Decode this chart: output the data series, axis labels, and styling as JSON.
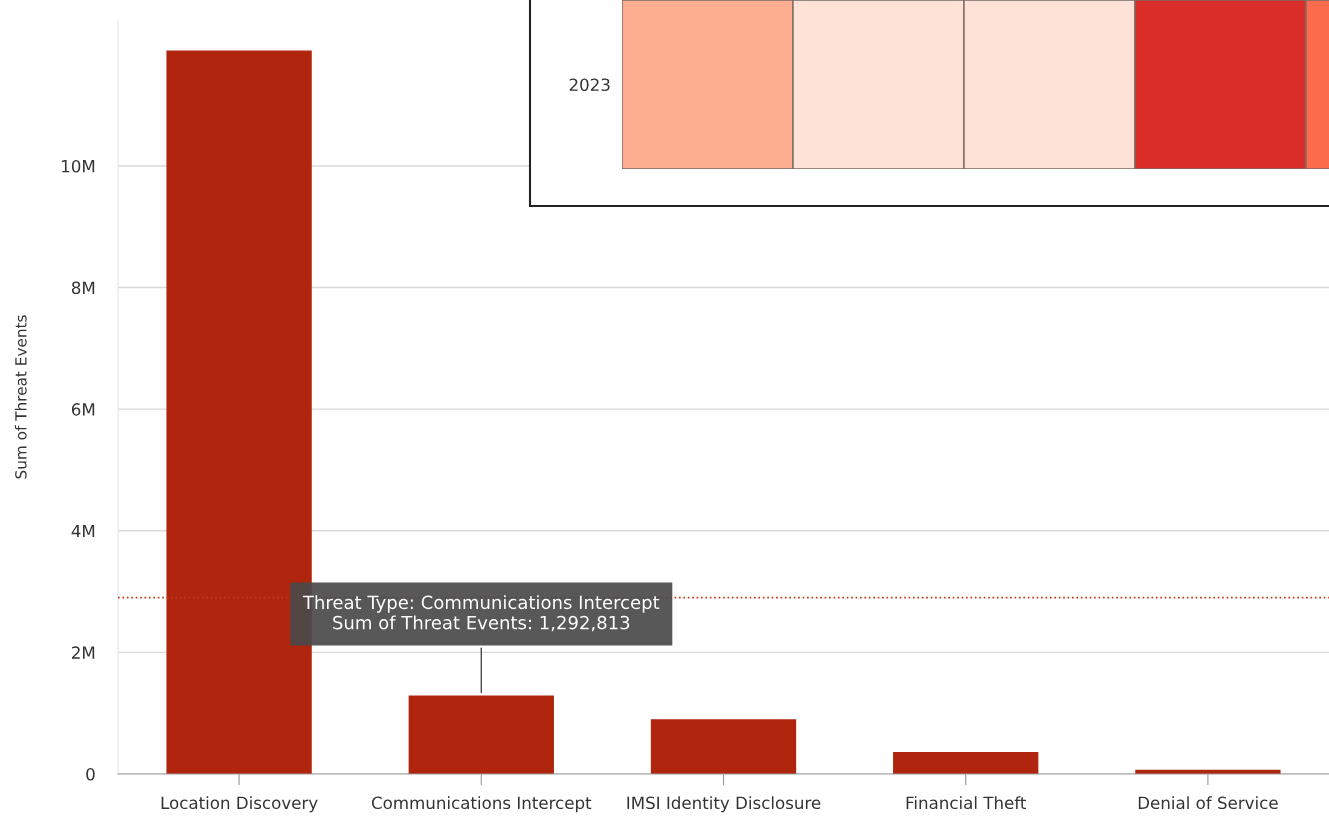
{
  "chart_data": [
    {
      "type": "bar",
      "ylabel": "Sum of Threat Events",
      "categories": [
        "Location Discovery",
        "Communications Intercept",
        "IMSI Identity Disclosure",
        "Financial Theft",
        "Denial of Service"
      ],
      "values": [
        11900000,
        1292813,
        900000,
        360000,
        70000
      ],
      "color": "#b0250e",
      "ylim": [
        0,
        12400000
      ],
      "yticks": [
        {
          "value": 0,
          "label": "0"
        },
        {
          "value": 2000000,
          "label": "2M"
        },
        {
          "value": 4000000,
          "label": "4M"
        },
        {
          "value": 6000000,
          "label": "6M"
        },
        {
          "value": 8000000,
          "label": "8M"
        },
        {
          "value": 10000000,
          "label": "10M"
        }
      ],
      "grid": "y",
      "ref_lines": [
        {
          "axis": "y",
          "value": 2900000,
          "color": "#c0391b",
          "line_style": "dotted"
        }
      ],
      "annotations": [
        {
          "text": "Threat Type: Communications Intercept\nSum of Threat Events: 1,292,813",
          "x": "Communications Intercept",
          "y": 1292813
        }
      ]
    },
    {
      "type": "other",
      "y_categories": [
        "2023"
      ],
      "colors": [
        "#fdae91",
        "#fee2d7",
        "#fee2d7",
        "#dc2e28",
        "#fc6b4c"
      ]
    }
  ]
}
